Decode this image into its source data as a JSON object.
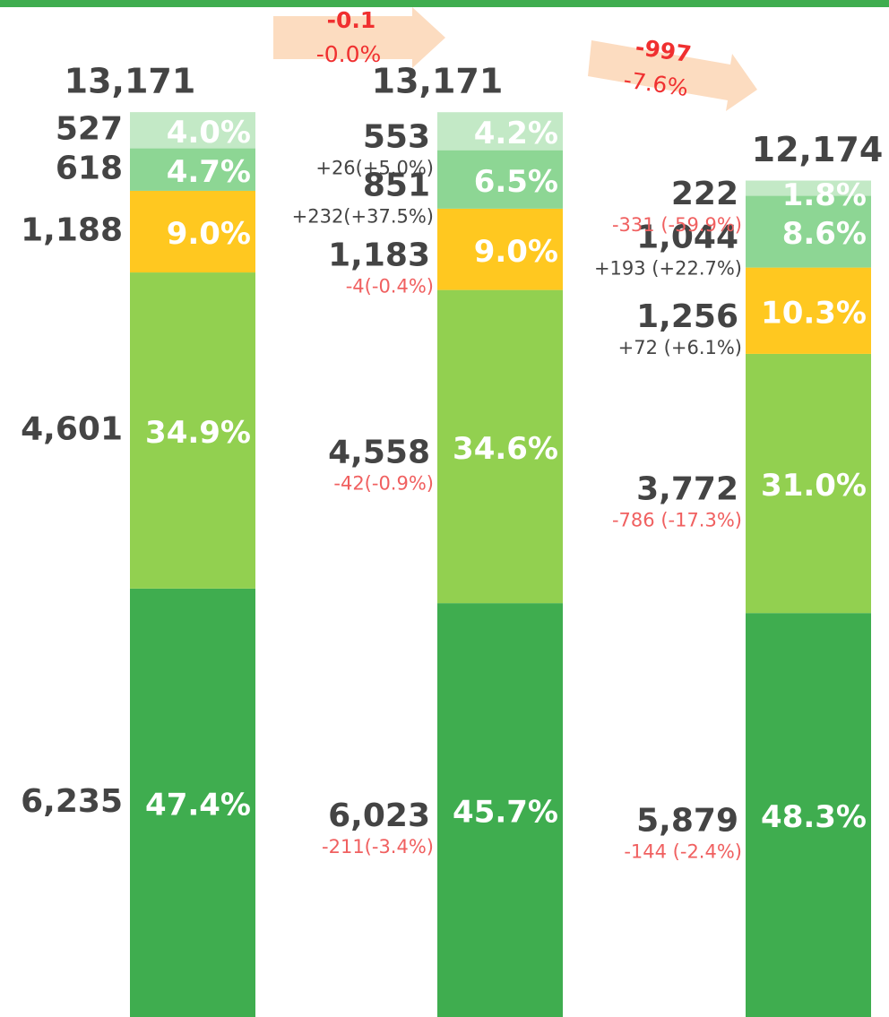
{
  "chart_data": {
    "type": "stacked_bar",
    "categories": [
      null,
      null,
      null
    ],
    "ylim": [
      0,
      13171
    ],
    "totals": [
      13171,
      13171,
      12174
    ],
    "total_labels": [
      "13,171",
      "13,171",
      "12,174"
    ],
    "series": [
      {
        "color": "#3fad4f",
        "values": [
          6235,
          6023,
          5879
        ],
        "value_labels": [
          "6,235",
          "6,023",
          "5,879"
        ],
        "share_labels": [
          "47.4%",
          "45.7%",
          "48.3%"
        ],
        "change_labels": [
          null,
          "-211(-3.4%)",
          "-144 (-2.4%)"
        ]
      },
      {
        "color": "#92d050",
        "values": [
          4601,
          4558,
          3772
        ],
        "value_labels": [
          "4,601",
          "4,558",
          "3,772"
        ],
        "share_labels": [
          "34.9%",
          "34.6%",
          "31.0%"
        ],
        "change_labels": [
          null,
          "-42(-0.9%)",
          "-786 (-17.3%)"
        ]
      },
      {
        "color": "#ffc820",
        "values": [
          1188,
          1183,
          1256
        ],
        "value_labels": [
          "1,188",
          "1,183",
          "1,256"
        ],
        "share_labels": [
          "9.0%",
          "9.0%",
          "10.3%"
        ],
        "change_labels": [
          null,
          "-4(-0.4%)",
          "+72 (+6.1%)"
        ]
      },
      {
        "color": "#8dd694",
        "values": [
          618,
          851,
          1044
        ],
        "value_labels": [
          "618",
          "851",
          "1,044"
        ],
        "share_labels": [
          "4.7%",
          "6.5%",
          "8.6%"
        ],
        "change_labels": [
          null,
          "+232(+37.5%)",
          "+193 (+22.7%)"
        ]
      },
      {
        "color": "#c3e9c6",
        "values": [
          527,
          553,
          222
        ],
        "value_labels": [
          "527",
          "553",
          "222"
        ],
        "share_labels": [
          "4.0%",
          "4.2%",
          "1.8%"
        ],
        "change_labels": [
          null,
          "+26(+5.0%)",
          "-331 (-59.9%)"
        ]
      }
    ],
    "transitions": [
      {
        "change": "-0.1",
        "percent": "-0.0%"
      },
      {
        "change": "-997",
        "percent": "-7.6%"
      }
    ]
  }
}
